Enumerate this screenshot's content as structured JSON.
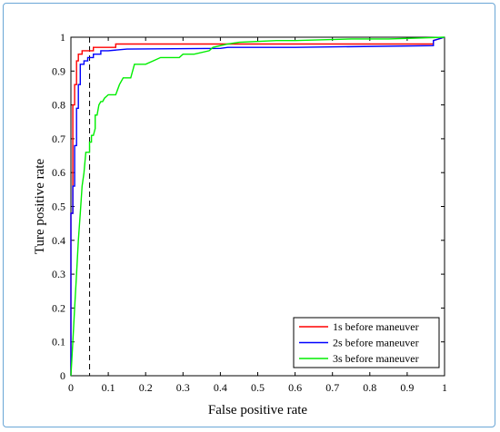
{
  "chart_data": {
    "type": "line",
    "title": "",
    "xlabel": "False positive rate",
    "ylabel": "Ture positive rate",
    "xlim": [
      0,
      1
    ],
    "ylim": [
      0,
      1
    ],
    "xticks": [
      "0",
      "0.1",
      "0.2",
      "0.3",
      "0.4",
      "0.5",
      "0.6",
      "0.7",
      "0.8",
      "0.9",
      "1"
    ],
    "yticks": [
      "0",
      "0.1",
      "0.2",
      "0.3",
      "0.4",
      "0.5",
      "0.6",
      "0.7",
      "0.8",
      "0.9",
      "1"
    ],
    "grid": false,
    "legend_position": "bottom-right",
    "threshold_line": {
      "x": 0.05,
      "style": "dashed",
      "color": "#000000"
    },
    "series": [
      {
        "name": "1s before maneuver",
        "color": "#ff0000",
        "x": [
          0,
          0,
          0.005,
          0.005,
          0.01,
          0.01,
          0.015,
          0.015,
          0.02,
          0.02,
          0.03,
          0.03,
          0.06,
          0.06,
          0.09,
          0.09,
          0.12,
          0.12,
          0.4,
          0.42,
          0.8,
          0.97,
          0.97,
          1.0
        ],
        "y": [
          0,
          0.48,
          0.48,
          0.8,
          0.8,
          0.86,
          0.86,
          0.93,
          0.93,
          0.95,
          0.95,
          0.96,
          0.96,
          0.97,
          0.97,
          0.97,
          0.97,
          0.98,
          0.98,
          0.98,
          0.98,
          0.98,
          0.99,
          1.0
        ]
      },
      {
        "name": "2s before maneuver",
        "color": "#0000ff",
        "x": [
          0,
          0,
          0.005,
          0.005,
          0.01,
          0.01,
          0.015,
          0.015,
          0.02,
          0.02,
          0.025,
          0.025,
          0.035,
          0.035,
          0.045,
          0.045,
          0.06,
          0.06,
          0.08,
          0.08,
          0.1,
          0.1,
          0.15,
          0.4,
          0.42,
          0.6,
          0.97,
          0.97,
          1.0
        ],
        "y": [
          0,
          0.48,
          0.48,
          0.56,
          0.56,
          0.68,
          0.68,
          0.79,
          0.79,
          0.86,
          0.86,
          0.92,
          0.92,
          0.93,
          0.93,
          0.94,
          0.94,
          0.95,
          0.95,
          0.96,
          0.96,
          0.96,
          0.965,
          0.967,
          0.97,
          0.97,
          0.975,
          0.99,
          1.0
        ]
      },
      {
        "name": "3s before maneuver",
        "color": "#00ee00",
        "x": [
          0,
          0.005,
          0.01,
          0.015,
          0.02,
          0.025,
          0.03,
          0.035,
          0.04,
          0.05,
          0.05,
          0.055,
          0.055,
          0.06,
          0.065,
          0.065,
          0.07,
          0.075,
          0.08,
          0.085,
          0.09,
          0.1,
          0.12,
          0.13,
          0.14,
          0.16,
          0.17,
          0.2,
          0.22,
          0.24,
          0.29,
          0.3,
          0.33,
          0.37,
          0.38,
          0.42,
          0.45,
          0.55,
          0.6,
          0.75,
          0.85,
          0.95,
          1.0
        ],
        "y": [
          0,
          0.1,
          0.2,
          0.3,
          0.4,
          0.48,
          0.56,
          0.6,
          0.66,
          0.66,
          0.69,
          0.69,
          0.71,
          0.71,
          0.73,
          0.77,
          0.77,
          0.8,
          0.81,
          0.81,
          0.82,
          0.83,
          0.83,
          0.86,
          0.88,
          0.88,
          0.92,
          0.92,
          0.93,
          0.94,
          0.94,
          0.95,
          0.95,
          0.96,
          0.97,
          0.98,
          0.985,
          0.99,
          0.99,
          0.995,
          0.995,
          0.998,
          1.0
        ]
      }
    ]
  }
}
